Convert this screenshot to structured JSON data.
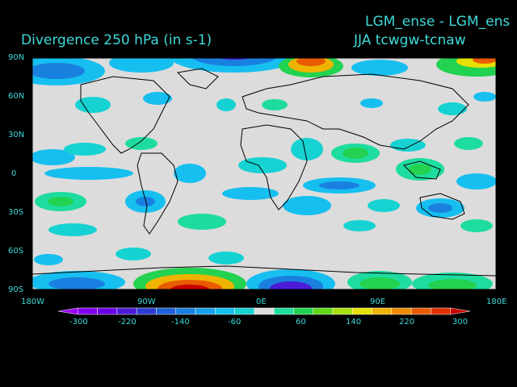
{
  "header": {
    "title_left": "Divergence   250 hPa  (in s-1)",
    "title_right_line1": "LGM_ense - LGM_ens",
    "title_right_line2": "JJA      tcwgw-tcnaw"
  },
  "axes": {
    "lat_labels": [
      "90N",
      "60N",
      "30N",
      "0",
      "30S",
      "60S",
      "90S"
    ],
    "lon_labels": [
      "180W",
      "90W",
      "0E",
      "90E",
      "180E"
    ]
  },
  "colorbar": {
    "labels": [
      "-300",
      "-220",
      "-140",
      "-60",
      "60",
      "140",
      "220",
      "300"
    ],
    "colors": [
      "#9a00ff",
      "#8400f0",
      "#6a00e8",
      "#4b1bd8",
      "#2c3cd0",
      "#1d60d8",
      "#1a80e0",
      "#18a0e8",
      "#16bff0",
      "#16d2d2",
      "#dcdcdc",
      "#1edca0",
      "#22d250",
      "#60d818",
      "#a8e010",
      "#e8e000",
      "#f0b400",
      "#f08a00",
      "#e85c00",
      "#e03000",
      "#c80000"
    ],
    "fill_color": "#dcdcdc",
    "text_color": "#3fd9d9"
  }
}
